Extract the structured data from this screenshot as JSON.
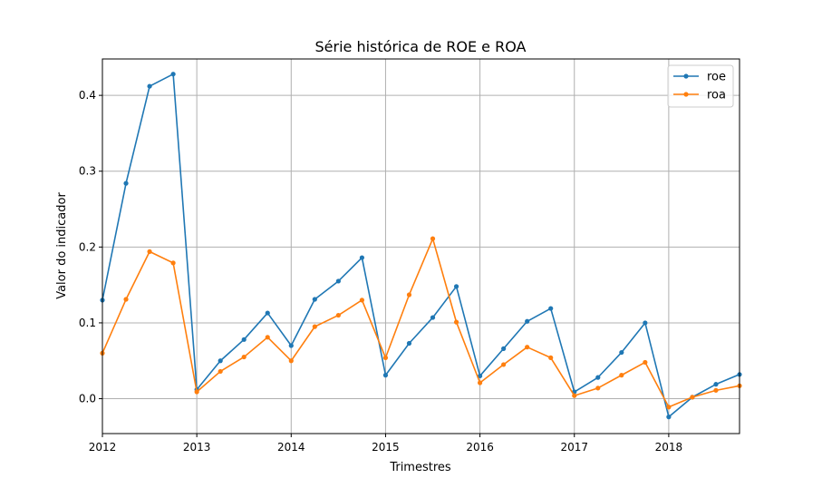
{
  "chart_data": {
    "type": "line",
    "title": "Série histórica de ROE e ROA",
    "xlabel": "Trimestres",
    "ylabel": "Valor do indicador",
    "x": [
      "2012Q1",
      "2012Q2",
      "2012Q3",
      "2012Q4",
      "2013Q1",
      "2013Q2",
      "2013Q3",
      "2013Q4",
      "2014Q1",
      "2014Q2",
      "2014Q3",
      "2014Q4",
      "2015Q1",
      "2015Q2",
      "2015Q3",
      "2015Q4",
      "2016Q1",
      "2016Q2",
      "2016Q3",
      "2016Q4",
      "2017Q1",
      "2017Q2",
      "2017Q3",
      "2017Q4",
      "2018Q1",
      "2018Q2",
      "2018Q3",
      "2018Q4"
    ],
    "x_ticks": [
      "2012",
      "2013",
      "2014",
      "2015",
      "2016",
      "2017",
      "2018"
    ],
    "y_ticks": [
      "0.0",
      "0.1",
      "0.2",
      "0.3",
      "0.4"
    ],
    "ylim": [
      -0.046,
      0.448
    ],
    "grid": true,
    "legend_position": "top-right",
    "series": [
      {
        "name": "roe",
        "color": "#1f77b4",
        "values": [
          0.13,
          0.284,
          0.412,
          0.428,
          0.012,
          0.05,
          0.078,
          0.113,
          0.07,
          0.131,
          0.155,
          0.186,
          0.031,
          0.073,
          0.107,
          0.148,
          0.03,
          0.066,
          0.102,
          0.119,
          0.009,
          0.028,
          0.061,
          0.1,
          -0.024,
          0.002,
          0.019,
          0.032
        ]
      },
      {
        "name": "roa",
        "color": "#ff7f0e",
        "values": [
          0.06,
          0.131,
          0.194,
          0.179,
          0.009,
          0.036,
          0.055,
          0.081,
          0.05,
          0.095,
          0.11,
          0.13,
          0.054,
          0.137,
          0.211,
          0.101,
          0.021,
          0.045,
          0.068,
          0.054,
          0.004,
          0.014,
          0.031,
          0.048,
          -0.011,
          0.002,
          0.011,
          0.017
        ]
      }
    ]
  }
}
